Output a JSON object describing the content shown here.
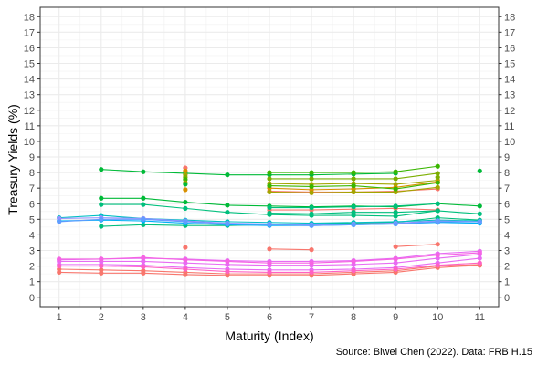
{
  "chart_data": {
    "type": "line",
    "title": "",
    "xlabel": "Maturity (Index)",
    "ylabel": "Treasury Yields (%)",
    "caption": "Source: Biwei Chen (2022). Data: FRB H.15",
    "x": [
      1,
      2,
      3,
      4,
      5,
      6,
      7,
      8,
      9,
      10,
      11
    ],
    "xlim": [
      0.55,
      11.45
    ],
    "ylim": [
      -0.6,
      18.6
    ],
    "y_ticks": [
      0,
      1,
      2,
      3,
      4,
      5,
      6,
      7,
      8,
      9,
      10,
      11,
      12,
      13,
      14,
      15,
      16,
      17,
      18
    ],
    "secondary_y_axis": true,
    "grid": true,
    "legend": "none",
    "series": [
      {
        "color": "#f8766d",
        "values": [
          1.6,
          1.55,
          1.55,
          1.45,
          1.4,
          1.4,
          1.4,
          1.5,
          1.6,
          1.9,
          2.05
        ]
      },
      {
        "color": "#f8766d",
        "values": [
          1.8,
          1.75,
          1.7,
          1.6,
          1.5,
          1.5,
          1.5,
          1.6,
          1.7,
          2.0,
          2.1
        ]
      },
      {
        "color": "#f8766d",
        "values": [
          null,
          null,
          null,
          null,
          null,
          5.6,
          5.6,
          5.65,
          5.7,
          5.6,
          null
        ]
      },
      {
        "color": "#f8766d",
        "values": [
          null,
          null,
          null,
          null,
          null,
          3.1,
          3.05,
          null,
          3.25,
          3.4,
          null
        ]
      },
      {
        "color": "#f8766d",
        "values": [
          null,
          null,
          null,
          null,
          null,
          6.8,
          6.75,
          6.75,
          6.8,
          6.95,
          null
        ]
      },
      {
        "color": "#f8766d",
        "values": [
          null,
          null,
          null,
          3.2,
          null,
          null,
          null,
          null,
          null,
          null,
          null
        ]
      },
      {
        "color": "#e76bf3",
        "values": [
          2.1,
          2.1,
          2.05,
          1.9,
          1.8,
          1.75,
          1.75,
          1.8,
          1.9,
          2.2,
          2.5
        ]
      },
      {
        "color": "#ff61c3",
        "values": [
          2.0,
          2.0,
          1.95,
          1.8,
          1.65,
          1.6,
          1.6,
          1.7,
          1.8,
          2.05,
          2.2
        ]
      },
      {
        "color": "#e76bf3",
        "values": [
          2.3,
          2.3,
          2.3,
          2.2,
          2.1,
          2.05,
          2.05,
          2.1,
          2.2,
          2.5,
          2.75
        ]
      },
      {
        "color": "#e76bf3",
        "values": [
          2.4,
          2.45,
          2.5,
          2.45,
          2.35,
          2.3,
          2.3,
          2.35,
          2.5,
          2.8,
          2.95
        ]
      },
      {
        "color": "#f564e3",
        "values": [
          2.45,
          2.45,
          2.55,
          2.4,
          2.3,
          2.2,
          2.2,
          2.3,
          2.45,
          2.7,
          2.85
        ]
      },
      {
        "color": "#00ba38",
        "values": [
          null,
          8.2,
          8.05,
          7.95,
          7.85,
          7.85,
          7.85,
          7.9,
          7.95,
          null,
          8.1
        ]
      },
      {
        "color": "#00ba38",
        "values": [
          null,
          6.35,
          6.35,
          6.1,
          5.9,
          5.85,
          5.8,
          5.85,
          5.8,
          6.0,
          5.85
        ]
      },
      {
        "color": "#00bf7d",
        "values": [
          null,
          5.95,
          5.95,
          5.7,
          5.45,
          5.3,
          5.25,
          5.25,
          5.2,
          5.55,
          5.35
        ]
      },
      {
        "color": "#00bf7d",
        "values": [
          null,
          4.55,
          4.65,
          4.6,
          4.6,
          4.65,
          4.7,
          4.75,
          4.8,
          5.1,
          4.95
        ]
      },
      {
        "color": "#00bfc4",
        "values": [
          5.1,
          5.25,
          5.05,
          4.95,
          4.85,
          4.8,
          4.75,
          4.8,
          4.85,
          4.95,
          4.9
        ]
      },
      {
        "color": "#00b0f6",
        "values": [
          4.9,
          4.95,
          4.9,
          4.75,
          4.65,
          4.6,
          4.6,
          4.65,
          4.7,
          4.8,
          4.75
        ]
      },
      {
        "color": "#9590ff",
        "values": [
          5.05,
          5.1,
          5.05,
          4.9,
          4.75,
          4.7,
          4.65,
          4.7,
          4.75,
          4.9,
          4.85
        ]
      },
      {
        "color": "#619cff",
        "values": [
          4.85,
          5.0,
          5.0,
          4.85,
          4.7,
          4.65,
          4.6,
          4.65,
          4.7,
          4.85,
          4.85
        ]
      },
      {
        "color": "#39b600",
        "values": [
          null,
          null,
          null,
          null,
          null,
          8.0,
          8.0,
          8.0,
          8.05,
          8.4,
          null
        ]
      },
      {
        "color": "#7cae00",
        "values": [
          null,
          null,
          null,
          null,
          null,
          7.6,
          7.6,
          7.6,
          7.6,
          7.95,
          null
        ]
      },
      {
        "color": "#a3a500",
        "values": [
          null,
          null,
          null,
          null,
          null,
          7.3,
          7.25,
          7.3,
          7.25,
          7.5,
          null
        ]
      },
      {
        "color": "#d89000",
        "values": [
          null,
          null,
          null,
          null,
          null,
          7.0,
          6.9,
          6.95,
          7.05,
          7.4,
          null
        ]
      },
      {
        "color": "#a3a500",
        "values": [
          null,
          null,
          null,
          null,
          null,
          6.75,
          6.7,
          6.75,
          6.75,
          7.05,
          null
        ]
      },
      {
        "color": "#39b600",
        "values": [
          null,
          null,
          null,
          null,
          null,
          7.15,
          7.1,
          7.15,
          6.95,
          7.35,
          null
        ]
      },
      {
        "color": "#00bf7d",
        "values": [
          null,
          null,
          null,
          null,
          null,
          5.75,
          5.75,
          5.8,
          5.85,
          6.0,
          null
        ]
      },
      {
        "color": "#00bf7d",
        "values": [
          null,
          null,
          null,
          null,
          null,
          5.4,
          5.35,
          5.45,
          5.45,
          5.55,
          null
        ]
      }
    ],
    "scatter_points": [
      {
        "x": 4,
        "y": 8.3,
        "color": "#f8766d"
      },
      {
        "x": 4,
        "y": 8.1,
        "color": "#d89000"
      },
      {
        "x": 4,
        "y": 7.85,
        "color": "#a3a500"
      },
      {
        "x": 4,
        "y": 7.7,
        "color": "#7cae00"
      },
      {
        "x": 4,
        "y": 7.55,
        "color": "#39b600"
      },
      {
        "x": 4,
        "y": 7.35,
        "color": "#a3a500"
      },
      {
        "x": 4,
        "y": 7.25,
        "color": "#00ba38"
      },
      {
        "x": 4,
        "y": 6.9,
        "color": "#d89000"
      },
      {
        "x": 10,
        "y": 7.7,
        "color": "#7cae00"
      }
    ]
  }
}
